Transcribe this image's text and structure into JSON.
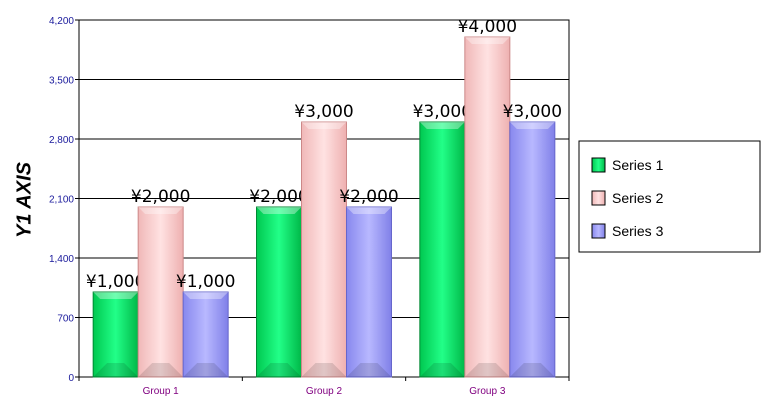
{
  "chart_data": {
    "type": "bar",
    "title": "",
    "xlabel": "",
    "ylabel": "Y1 AXIS",
    "categories": [
      "Group 1",
      "Group 2",
      "Group 3"
    ],
    "series": [
      {
        "name": "Series 1",
        "values": [
          1000,
          2000,
          3000
        ],
        "labels": [
          "¥1,000",
          "¥2,000",
          "¥3,000"
        ],
        "color": "#00ee66"
      },
      {
        "name": "Series 2",
        "values": [
          2000,
          3000,
          4000
        ],
        "labels": [
          "¥2,000",
          "¥3,000",
          "¥4,000"
        ],
        "color": "#ffc8c8"
      },
      {
        "name": "Series 3",
        "values": [
          1000,
          2000,
          3000
        ],
        "labels": [
          "¥1,000",
          "¥2,000",
          "¥3,000"
        ],
        "color": "#9999ff"
      }
    ],
    "yticks": [
      0,
      700,
      1400,
      2100,
      2800,
      3500,
      4200
    ],
    "ytick_labels": [
      "0",
      "700",
      "1,400",
      "2,100",
      "2,800",
      "3,500",
      "4,200"
    ],
    "ylim": [
      0,
      4200
    ],
    "grid": true,
    "legend_position": "right"
  }
}
